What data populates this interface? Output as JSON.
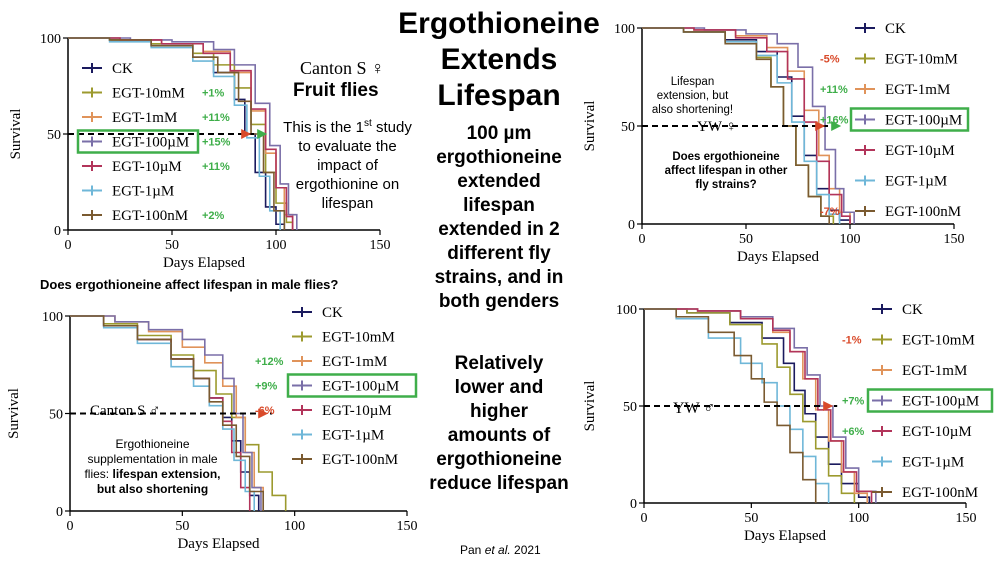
{
  "center": {
    "title_lines": [
      "Ergothioneine",
      "Extends",
      "Lifespan"
    ],
    "body1": [
      "100 µm",
      "ergothioneine",
      "extended",
      "lifespan",
      "extended in 2",
      "different fly",
      "strains, and in",
      "both genders"
    ],
    "body2": [
      "Relatively",
      "lower and",
      "higher",
      "amounts of",
      "ergothioneine",
      "reduce lifespan"
    ],
    "citation_a": "Pan ",
    "citation_b": "et al.",
    "citation_c": " 2021"
  },
  "annotations": {
    "tl_strain": "Canton S ♀",
    "tl_heading": "Fruit flies",
    "tl_body1": "This is the 1",
    "tl_body1_sup": "st",
    "tl_body1_end": " study",
    "tl_body2": "to evaluate the",
    "tl_body3": "impact of",
    "tl_body4": "ergothionine on",
    "tl_body5": "lifespan",
    "tr_note1": "Lifespan",
    "tr_note2": "extension, but",
    "tr_note3": "also shortening!",
    "tr_strain": "YW ♀",
    "tr_q1": "Does ergothioneine",
    "tr_q2": "affect lifespan in other",
    "tr_q3": "fly strains?",
    "bl_question": "Does ergothioneine affect lifespan in male flies?",
    "bl_strain": "Canton S ♂",
    "bl_note1": "Ergothioneine",
    "bl_note2": "supplementation in male",
    "bl_note3": "flies: ",
    "bl_note3b": "lifespan extension,",
    "bl_note4": "but also shortening",
    "br_strain": "YW ♂"
  },
  "colors": {
    "green": "#3fae4a",
    "red": "#d94a2a"
  },
  "chart_data": [
    {
      "type": "line",
      "panel": "top-left",
      "xlabel": "Days Elapsed",
      "ylabel": "Survival",
      "xlim": [
        0,
        150
      ],
      "ylim": [
        0,
        100
      ],
      "xticks": [
        0,
        50,
        100,
        150
      ],
      "yticks": [
        0,
        50,
        100
      ],
      "legend": [
        "CK",
        "EGT-10mM",
        "EGT-1mM",
        "EGT-100µM",
        "EGT-10µM",
        "EGT-1µM",
        "EGT-100nM"
      ],
      "legend_pct": [
        "",
        "+1%",
        "+11%",
        "+15%",
        "+11%",
        "",
        "+2%"
      ],
      "legend_pct_color": [
        "",
        "green",
        "green",
        "green",
        "green",
        "",
        "green"
      ],
      "highlight": 3,
      "series": [
        {
          "name": "CK",
          "color": "#1a1a5e",
          "x": [
            0,
            20,
            40,
            60,
            70,
            80,
            85,
            90,
            95,
            100,
            104
          ],
          "y": [
            100,
            99,
            96,
            90,
            82,
            68,
            50,
            30,
            12,
            3,
            0
          ]
        },
        {
          "name": "EGT-10mM",
          "color": "#9c9a2e",
          "x": [
            0,
            20,
            40,
            60,
            70,
            80,
            88,
            95,
            100,
            105,
            108
          ],
          "y": [
            100,
            99,
            97,
            92,
            86,
            74,
            55,
            30,
            14,
            4,
            0
          ]
        },
        {
          "name": "EGT-1mM",
          "color": "#e0935a",
          "x": [
            0,
            25,
            45,
            65,
            78,
            88,
            95,
            100,
            104,
            108
          ],
          "y": [
            100,
            99,
            97,
            93,
            82,
            62,
            40,
            22,
            8,
            0
          ]
        },
        {
          "name": "EGT-100µM",
          "color": "#7a6fa8",
          "x": [
            0,
            30,
            50,
            70,
            80,
            90,
            97,
            102,
            106,
            110
          ],
          "y": [
            100,
            99,
            98,
            94,
            86,
            66,
            44,
            24,
            8,
            0
          ]
        },
        {
          "name": "EGT-10µM",
          "color": "#b2345a",
          "x": [
            0,
            25,
            45,
            65,
            78,
            88,
            95,
            100,
            105,
            108
          ],
          "y": [
            100,
            99,
            97,
            92,
            83,
            63,
            42,
            22,
            7,
            0
          ]
        },
        {
          "name": "EGT-1µM",
          "color": "#6fb7d8",
          "x": [
            0,
            20,
            40,
            60,
            70,
            80,
            86,
            92,
            97,
            102
          ],
          "y": [
            100,
            98,
            95,
            88,
            80,
            65,
            48,
            28,
            10,
            0
          ]
        },
        {
          "name": "EGT-100nM",
          "color": "#7a5a30",
          "x": [
            0,
            20,
            40,
            60,
            72,
            82,
            88,
            94,
            99,
            104
          ],
          "y": [
            100,
            99,
            96,
            90,
            82,
            67,
            50,
            30,
            10,
            0
          ]
        }
      ],
      "median_line_y": 50
    },
    {
      "type": "line",
      "panel": "top-right",
      "xlabel": "Days Elapsed",
      "ylabel": "Survival",
      "xlim": [
        0,
        150
      ],
      "ylim": [
        0,
        100
      ],
      "xticks": [
        0,
        50,
        100,
        150
      ],
      "yticks": [
        0,
        50,
        100
      ],
      "legend": [
        "CK",
        "EGT-10mM",
        "EGT-1mM",
        "EGT-100µM",
        "EGT-10µM",
        "EGT-1µM",
        "EGT-100nM"
      ],
      "legend_pct": [
        "",
        "-5%",
        "+11%",
        "+16%",
        "",
        "",
        "-7%"
      ],
      "legend_pct_color": [
        "",
        "red",
        "green",
        "green",
        "",
        "",
        "red"
      ],
      "highlight": 3,
      "series": [
        {
          "name": "CK",
          "color": "#1a1a5e",
          "x": [
            0,
            20,
            40,
            55,
            65,
            72,
            78,
            84,
            90,
            95,
            100
          ],
          "y": [
            100,
            98,
            94,
            88,
            75,
            55,
            35,
            18,
            7,
            2,
            0
          ]
        },
        {
          "name": "EGT-10mM",
          "color": "#9c9a2e",
          "x": [
            0,
            20,
            40,
            55,
            62,
            68,
            74,
            80,
            86,
            92
          ],
          "y": [
            100,
            98,
            93,
            85,
            70,
            50,
            30,
            14,
            4,
            0
          ]
        },
        {
          "name": "EGT-1mM",
          "color": "#e0935a",
          "x": [
            0,
            25,
            45,
            60,
            70,
            78,
            85,
            90,
            95,
            100
          ],
          "y": [
            100,
            99,
            96,
            90,
            78,
            58,
            35,
            18,
            6,
            0
          ]
        },
        {
          "name": "EGT-100µM",
          "color": "#7a6fa8",
          "x": [
            0,
            30,
            50,
            65,
            75,
            82,
            88,
            93,
            97,
            102
          ],
          "y": [
            100,
            99,
            97,
            92,
            80,
            60,
            38,
            18,
            6,
            0
          ]
        },
        {
          "name": "EGT-10µM",
          "color": "#b2345a",
          "x": [
            0,
            25,
            45,
            60,
            70,
            78,
            84,
            90,
            96,
            100
          ],
          "y": [
            100,
            99,
            95,
            88,
            74,
            52,
            32,
            15,
            4,
            0
          ]
        },
        {
          "name": "EGT-1µM",
          "color": "#6fb7d8",
          "x": [
            0,
            20,
            40,
            55,
            65,
            72,
            78,
            84,
            90,
            95
          ],
          "y": [
            100,
            98,
            93,
            86,
            72,
            52,
            32,
            15,
            5,
            0
          ]
        },
        {
          "name": "EGT-100nM",
          "color": "#7a5a30",
          "x": [
            0,
            20,
            40,
            55,
            62,
            68,
            74,
            80,
            86,
            90
          ],
          "y": [
            100,
            98,
            92,
            84,
            70,
            50,
            30,
            14,
            4,
            0
          ]
        }
      ],
      "median_line_y": 50
    },
    {
      "type": "line",
      "panel": "bottom-left",
      "xlabel": "Days Elapsed",
      "ylabel": "Survival",
      "xlim": [
        0,
        150
      ],
      "ylim": [
        0,
        100
      ],
      "xticks": [
        0,
        50,
        100,
        150
      ],
      "yticks": [
        0,
        50,
        100
      ],
      "legend": [
        "CK",
        "EGT-10mM",
        "EGT-1mM",
        "EGT-100µM",
        "EGT-10µM",
        "EGT-1µM",
        "EGT-100nM"
      ],
      "legend_pct": [
        "",
        "",
        "+12%",
        "+9%",
        "-6%",
        "",
        ""
      ],
      "legend_pct_color": [
        "",
        "",
        "green",
        "green",
        "red",
        "",
        ""
      ],
      "highlight": 3,
      "series": [
        {
          "name": "CK",
          "color": "#1a1a5e",
          "x": [
            0,
            15,
            30,
            45,
            55,
            62,
            68,
            72,
            76,
            80,
            84
          ],
          "y": [
            100,
            95,
            88,
            78,
            68,
            58,
            48,
            36,
            20,
            8,
            0
          ]
        },
        {
          "name": "EGT-10mM",
          "color": "#9c9a2e",
          "x": [
            0,
            15,
            30,
            45,
            55,
            65,
            72,
            78,
            84,
            90,
            96
          ],
          "y": [
            100,
            96,
            90,
            80,
            72,
            60,
            48,
            34,
            20,
            8,
            0
          ]
        },
        {
          "name": "EGT-1mM",
          "color": "#e0935a",
          "x": [
            0,
            20,
            35,
            50,
            60,
            68,
            74,
            78,
            82,
            86
          ],
          "y": [
            100,
            97,
            92,
            84,
            76,
            64,
            48,
            30,
            12,
            0
          ]
        },
        {
          "name": "EGT-100µM",
          "color": "#7a6fa8",
          "x": [
            0,
            20,
            35,
            50,
            60,
            68,
            73,
            77,
            81,
            85
          ],
          "y": [
            100,
            97,
            93,
            88,
            80,
            68,
            50,
            30,
            12,
            0
          ]
        },
        {
          "name": "EGT-10µM",
          "color": "#b2345a",
          "x": [
            0,
            15,
            30,
            45,
            55,
            62,
            68,
            72,
            76,
            80
          ],
          "y": [
            100,
            95,
            88,
            78,
            68,
            58,
            46,
            30,
            12,
            0
          ]
        },
        {
          "name": "EGT-1µM",
          "color": "#6fb7d8",
          "x": [
            0,
            15,
            30,
            45,
            55,
            62,
            68,
            73,
            78,
            82
          ],
          "y": [
            100,
            94,
            86,
            74,
            64,
            54,
            42,
            26,
            10,
            0
          ]
        },
        {
          "name": "EGT-100nM",
          "color": "#7a5a30",
          "x": [
            0,
            15,
            30,
            45,
            55,
            62,
            68,
            74,
            80,
            86
          ],
          "y": [
            100,
            95,
            88,
            78,
            68,
            56,
            44,
            28,
            10,
            0
          ]
        }
      ],
      "median_line_y": 50
    },
    {
      "type": "line",
      "panel": "bottom-right",
      "xlabel": "Days Elapsed",
      "ylabel": "Survival",
      "xlim": [
        0,
        150
      ],
      "ylim": [
        0,
        100
      ],
      "xticks": [
        0,
        50,
        100,
        150
      ],
      "yticks": [
        0,
        50,
        100
      ],
      "legend": [
        "CK",
        "EGT-10mM",
        "EGT-1mM",
        "EGT-100µM",
        "EGT-10µM",
        "EGT-1µM",
        "EGT-100nM"
      ],
      "legend_pct": [
        "",
        "-1%",
        "",
        "+7%",
        "+6%",
        "",
        ""
      ],
      "legend_pct_color": [
        "",
        "red",
        "",
        "green",
        "green",
        "",
        ""
      ],
      "highlight": 3,
      "series": [
        {
          "name": "CK",
          "color": "#1a1a5e",
          "x": [
            0,
            20,
            40,
            55,
            65,
            70,
            75,
            80,
            86,
            92,
            100,
            105
          ],
          "y": [
            100,
            98,
            93,
            85,
            72,
            58,
            46,
            34,
            20,
            10,
            3,
            0
          ]
        },
        {
          "name": "EGT-10mM",
          "color": "#9c9a2e",
          "x": [
            0,
            20,
            40,
            55,
            62,
            68,
            74,
            80,
            86,
            92,
            98
          ],
          "y": [
            100,
            98,
            92,
            82,
            70,
            56,
            42,
            28,
            14,
            5,
            0
          ]
        },
        {
          "name": "EGT-1mM",
          "color": "#e0935a",
          "x": [
            0,
            25,
            45,
            60,
            68,
            74,
            80,
            86,
            92,
            98,
            104
          ],
          "y": [
            100,
            99,
            95,
            88,
            78,
            64,
            48,
            32,
            16,
            5,
            0
          ]
        },
        {
          "name": "EGT-100µM",
          "color": "#7a6fa8",
          "x": [
            0,
            25,
            45,
            60,
            70,
            76,
            82,
            88,
            94,
            100,
            108
          ],
          "y": [
            100,
            99,
            96,
            90,
            80,
            66,
            50,
            34,
            18,
            6,
            0
          ]
        },
        {
          "name": "EGT-10µM",
          "color": "#b2345a",
          "x": [
            0,
            25,
            45,
            60,
            68,
            75,
            81,
            87,
            93,
            99,
            106
          ],
          "y": [
            100,
            99,
            95,
            89,
            78,
            64,
            48,
            32,
            16,
            6,
            0
          ]
        },
        {
          "name": "EGT-1µM",
          "color": "#6fb7d8",
          "x": [
            0,
            15,
            30,
            45,
            55,
            62,
            68,
            74,
            80,
            86
          ],
          "y": [
            100,
            95,
            85,
            72,
            62,
            50,
            38,
            24,
            10,
            0
          ]
        },
        {
          "name": "EGT-100nM",
          "color": "#7a5a30",
          "x": [
            0,
            15,
            30,
            42,
            50,
            56,
            62,
            68,
            74,
            80
          ],
          "y": [
            100,
            96,
            88,
            76,
            64,
            52,
            40,
            26,
            12,
            0
          ]
        }
      ],
      "median_line_y": 50
    }
  ]
}
